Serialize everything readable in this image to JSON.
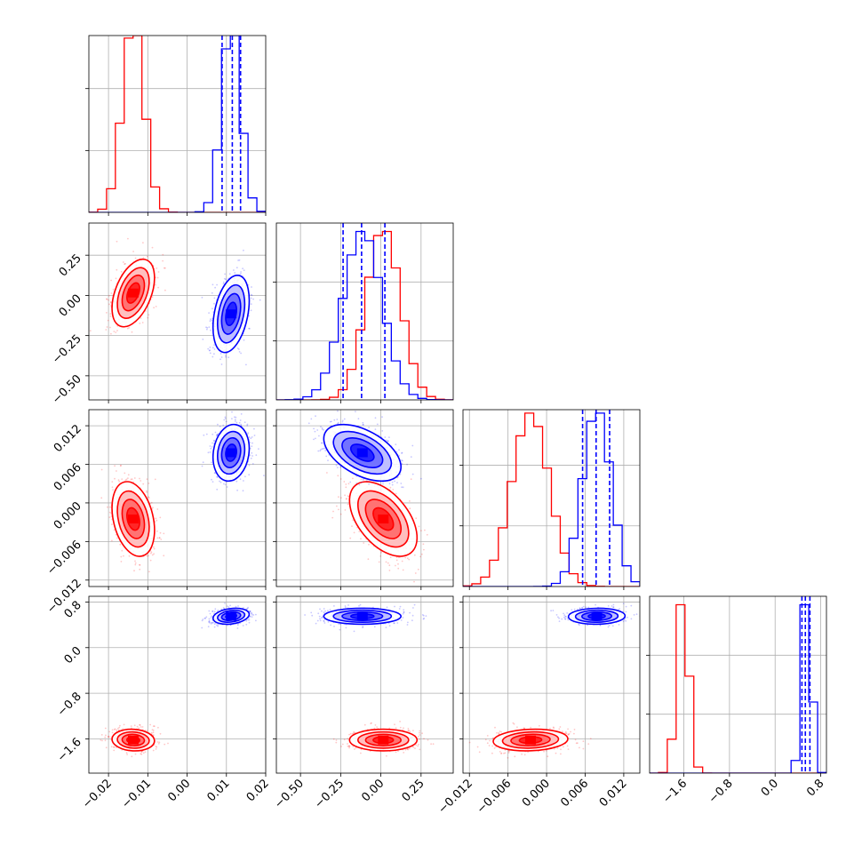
{
  "chart_data": {
    "type": "corner",
    "n_params": 4,
    "axis_ranges": [
      [
        -0.025,
        0.02
      ],
      [
        -0.65,
        0.45
      ],
      [
        -0.013,
        0.0145
      ],
      [
        -2.2,
        0.9
      ]
    ],
    "hist_top": [
      1.0,
      1.05,
      1.02,
      1.05
    ],
    "grid": true,
    "series": [
      {
        "color": "#ff0000",
        "means": [
          -0.0137,
          0.015,
          -0.0025,
          -1.62
        ],
        "sds": [
          0.0027,
          0.105,
          0.0029,
          0.095
        ],
        "rho": [
          [
            1,
            0.45,
            -0.3,
            -0.08
          ],
          [
            0.45,
            1,
            -0.5,
            0.0
          ],
          [
            -0.3,
            -0.5,
            1,
            0.12
          ],
          [
            -0.08,
            0.0,
            0.12,
            1
          ]
        ],
        "quantile_lines": []
      },
      {
        "color": "#0000ff",
        "means": [
          0.0112,
          -0.115,
          0.0078,
          0.55
        ],
        "sds": [
          0.0023,
          0.12,
          0.0022,
          0.07
        ],
        "rho": [
          [
            1,
            0.35,
            0.15,
            0.25
          ],
          [
            0.35,
            1,
            -0.5,
            0.0
          ],
          [
            0.15,
            -0.5,
            1,
            0.05
          ],
          [
            0.25,
            0.0,
            0.05,
            1
          ]
        ],
        "quantile_lines": [
          [
            0.0089,
            0.0115,
            0.0136
          ],
          [
            -0.235,
            -0.12,
            0.025
          ],
          [
            0.0056,
            0.0077,
            0.0098
          ],
          [
            0.47,
            0.53,
            0.61
          ]
        ]
      }
    ],
    "ticks": [
      {
        "values": [
          -0.02,
          -0.01,
          0.0,
          0.01,
          0.02
        ],
        "labels": [
          "−0.02",
          "−0.01",
          "0.00",
          "0.01",
          "0.02"
        ]
      },
      {
        "values": [
          -0.5,
          -0.25,
          0.0,
          0.25
        ],
        "labels": [
          "−0.50",
          "−0.25",
          "0.00",
          "0.25"
        ]
      },
      {
        "values": [
          -0.012,
          -0.006,
          0.0,
          0.006,
          0.012
        ],
        "labels": [
          "−0.012",
          "−0.006",
          "0.000",
          "0.006",
          "0.012"
        ]
      },
      {
        "values": [
          -1.6,
          -0.8,
          0.0,
          0.8
        ],
        "labels": [
          "−1.6",
          "−0.8",
          "0.0",
          "0.8"
        ]
      }
    ]
  }
}
